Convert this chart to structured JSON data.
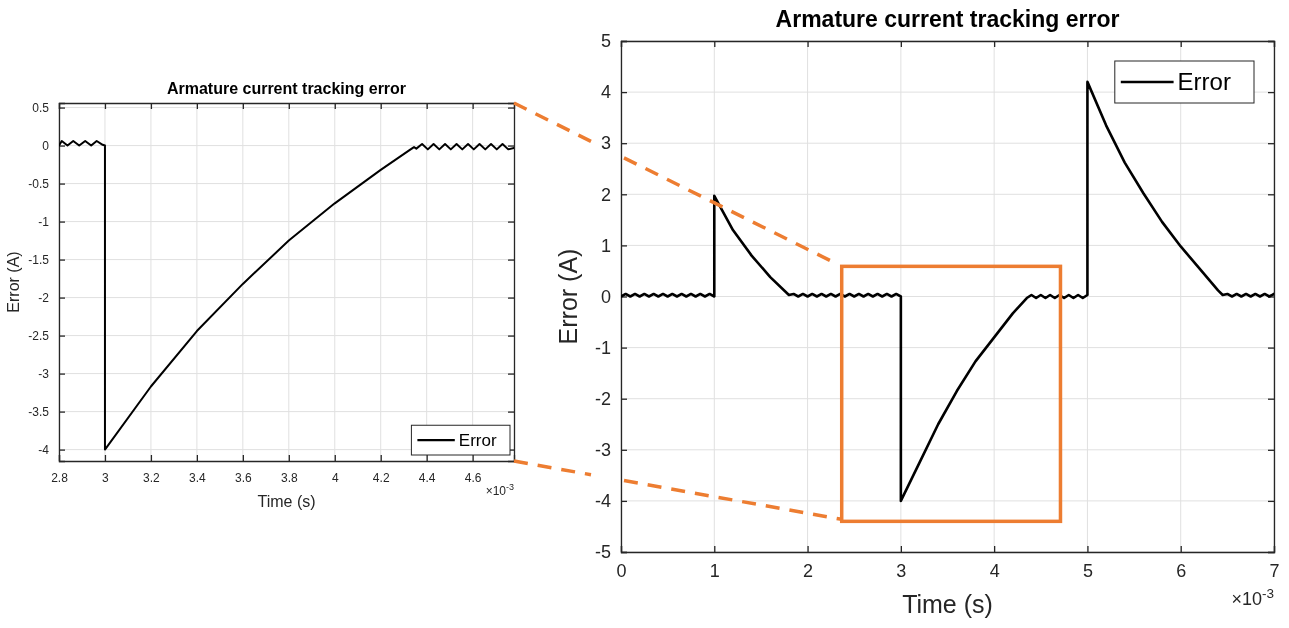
{
  "chart_data": [
    {
      "type": "line",
      "title": "Armature current tracking error",
      "xlabel": "Time (s)",
      "ylabel": "Error (A)",
      "annotations": [
        "×10$^{-3}$"
      ],
      "xlim": [
        2.8,
        4.78
      ],
      "xticks": [
        2.8,
        3,
        3.2,
        3.4,
        3.6,
        3.8,
        4,
        4.2,
        4.4,
        4.6
      ],
      "ylim": [
        -4.15,
        0.56
      ],
      "yticks": [
        -4,
        -3.5,
        -3,
        -2.5,
        -2,
        -1.5,
        -1,
        -0.5,
        0,
        0.5
      ],
      "grid": true,
      "legend": "bottom right",
      "series": [
        {
          "name": "Error",
          "color": "#000000",
          "x": [
            2.8,
            2.812,
            2.837,
            2.862,
            2.888,
            2.914,
            2.94,
            2.964,
            2.99,
            3.0,
            3.0,
            3.2,
            3.4,
            3.6,
            3.8,
            4.0,
            4.2,
            4.33,
            4.345,
            4.355,
            4.38,
            4.405,
            4.43,
            4.455,
            4.48,
            4.505,
            4.53,
            4.555,
            4.58,
            4.605,
            4.63,
            4.655,
            4.68,
            4.705,
            4.73,
            4.755,
            4.78
          ],
          "values": [
            0,
            0.06,
            0,
            0.06,
            0,
            0.06,
            0,
            0.06,
            0.01,
            0,
            -4,
            -3.17,
            -2.44,
            -1.82,
            -1.25,
            -0.76,
            -0.32,
            -0.05,
            -0.02,
            -0.04,
            0.02,
            -0.05,
            0.02,
            -0.05,
            0.02,
            -0.05,
            0.02,
            -0.05,
            0.02,
            -0.05,
            0.02,
            -0.05,
            0.02,
            -0.05,
            0.02,
            -0.05,
            -0.03
          ]
        }
      ]
    },
    {
      "type": "line",
      "title": "Armature current tracking error",
      "xlabel": "Time (s)",
      "ylabel": "Error (A)",
      "annotations": [
        "×10$^{-3}$"
      ],
      "xlim": [
        0,
        7
      ],
      "xticks": [
        0,
        1,
        2,
        3,
        4,
        5,
        6,
        7
      ],
      "ylim": [
        -5,
        5
      ],
      "yticks": [
        -5,
        -4,
        -3,
        -2,
        -1,
        0,
        1,
        2,
        3,
        4,
        5
      ],
      "grid": true,
      "legend": "top right",
      "series": [
        {
          "name": "Error",
          "color": "#000000",
          "x": [
            0,
            0.05,
            0.1,
            0.15,
            0.2,
            0.25,
            0.3,
            0.35,
            0.4,
            0.45,
            0.5,
            0.55,
            0.6,
            0.65,
            0.7,
            0.75,
            0.8,
            0.85,
            0.9,
            0.95,
            1.0,
            1.0,
            1.2,
            1.4,
            1.6,
            1.8,
            1.85,
            1.9,
            1.95,
            2.0,
            2.05,
            2.1,
            2.15,
            2.2,
            2.25,
            2.3,
            2.35,
            2.4,
            2.45,
            2.5,
            2.55,
            2.6,
            2.65,
            2.7,
            2.75,
            2.8,
            2.85,
            2.9,
            2.95,
            3.0,
            3.0,
            3.2,
            3.4,
            3.6,
            3.8,
            4.0,
            4.2,
            4.35,
            4.4,
            4.45,
            4.5,
            4.55,
            4.6,
            4.65,
            4.7,
            4.75,
            4.8,
            4.85,
            4.9,
            4.95,
            5.0,
            5.0,
            5.2,
            5.4,
            5.6,
            5.8,
            6.0,
            6.2,
            6.4,
            6.45,
            6.5,
            6.55,
            6.6,
            6.65,
            6.7,
            6.75,
            6.8,
            6.85,
            6.9,
            6.95,
            7.0
          ],
          "values": [
            0,
            0.05,
            0,
            0.05,
            0,
            0.05,
            0,
            0.05,
            0,
            0.05,
            0,
            0.05,
            0,
            0.05,
            0,
            0.05,
            0,
            0.05,
            0,
            0.05,
            0,
            1.97,
            1.3,
            0.8,
            0.38,
            0.03,
            0.05,
            0,
            0.05,
            0,
            0.05,
            0,
            0.05,
            0,
            0.05,
            0,
            0.05,
            0,
            0.05,
            0,
            0.05,
            0,
            0.05,
            0,
            0.05,
            0,
            0.05,
            0,
            0.05,
            0,
            -4,
            -3.25,
            -2.5,
            -1.85,
            -1.27,
            -0.8,
            -0.33,
            -0.03,
            0.03,
            -0.03,
            0.03,
            -0.03,
            0.03,
            -0.03,
            0.03,
            -0.03,
            0.03,
            -0.03,
            0.03,
            -0.03,
            0.03,
            4.2,
            3.35,
            2.62,
            2.02,
            1.46,
            0.98,
            0.55,
            0.12,
            0.03,
            0.05,
            0,
            0.05,
            0,
            0.05,
            0,
            0.05,
            0,
            0.05,
            0,
            0.05
          ]
        }
      ]
    }
  ]
}
